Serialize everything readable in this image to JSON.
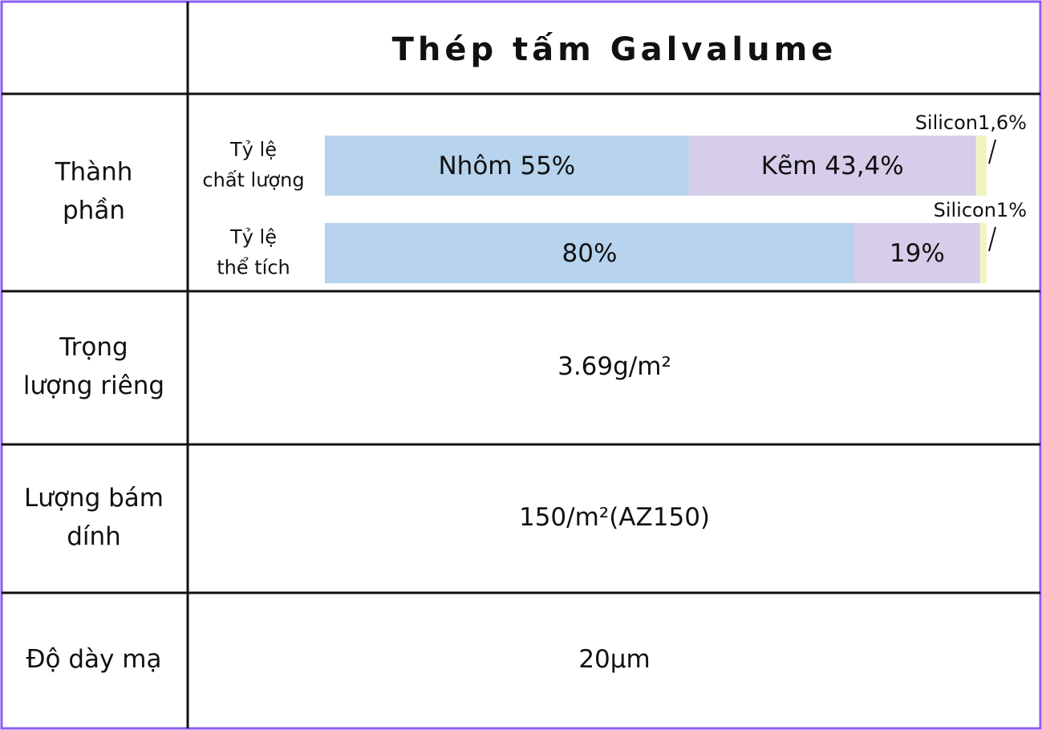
{
  "header": {
    "title": "Thép tấm Galvalume"
  },
  "rows": [
    {
      "label": [
        "Thành",
        "phần"
      ],
      "bars": [
        {
          "label": [
            "Tỷ lệ",
            "chất lượng"
          ],
          "segments": [
            {
              "label": "Nhôm 55%",
              "value": 55,
              "color": "#b7d3ee"
            },
            {
              "label": "Kẽm 43,4%",
              "value": 43.4,
              "color": "#d6cdea"
            },
            {
              "label": "Silicon1,6%",
              "value": 1.6,
              "color": "#f1f4c0"
            }
          ]
        },
        {
          "label": [
            "Tỷ lệ",
            "thể tích"
          ],
          "segments": [
            {
              "label": "80%",
              "value": 80,
              "color": "#b7d3ee"
            },
            {
              "label": "19%",
              "value": 19,
              "color": "#d6cdea"
            },
            {
              "label": "Silicon1%",
              "value": 1,
              "color": "#f1f4c0"
            }
          ]
        }
      ]
    },
    {
      "label": [
        "Trọng",
        "lượng riêng"
      ],
      "value": "3.69g/m²"
    },
    {
      "label": [
        "Lượng bám",
        "dính"
      ],
      "value": "150/m²(AZ150)"
    },
    {
      "label": [
        "Độ dày mạ"
      ],
      "value": "20µm"
    }
  ]
}
